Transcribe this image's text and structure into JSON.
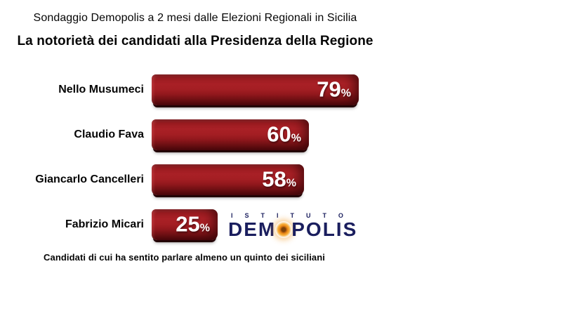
{
  "header": {
    "subtitle": "Sondaggio Demopolis a 2 mesi dalle Elezioni Regionali in Sicilia",
    "title": "La notorietà dei candidati alla Presidenza della Regione"
  },
  "chart_data": {
    "type": "bar",
    "orientation": "horizontal",
    "title": "La notorietà dei candidati alla Presidenza della Regione",
    "categories": [
      "Nello Musumeci",
      "Claudio Fava",
      "Giancarlo Cancelleri",
      "Fabrizio Micari"
    ],
    "values": [
      79,
      60,
      58,
      25
    ],
    "unit": "%",
    "xlim": [
      0,
      100
    ],
    "grid": false,
    "legend": false,
    "bar_color": "#a41e23",
    "bar_shadow_color": "#230305",
    "value_label_color": "#ffffff"
  },
  "logo": {
    "top_text": "ISTITUTO",
    "bottom_left": "DEM",
    "bottom_right": "POLIS",
    "navy": "#1a1e5e",
    "orange": "#f0931c",
    "icon": "sun-disc"
  },
  "footer": {
    "caption": "Candidati di cui ha sentito parlare almeno un quinto dei siciliani"
  }
}
